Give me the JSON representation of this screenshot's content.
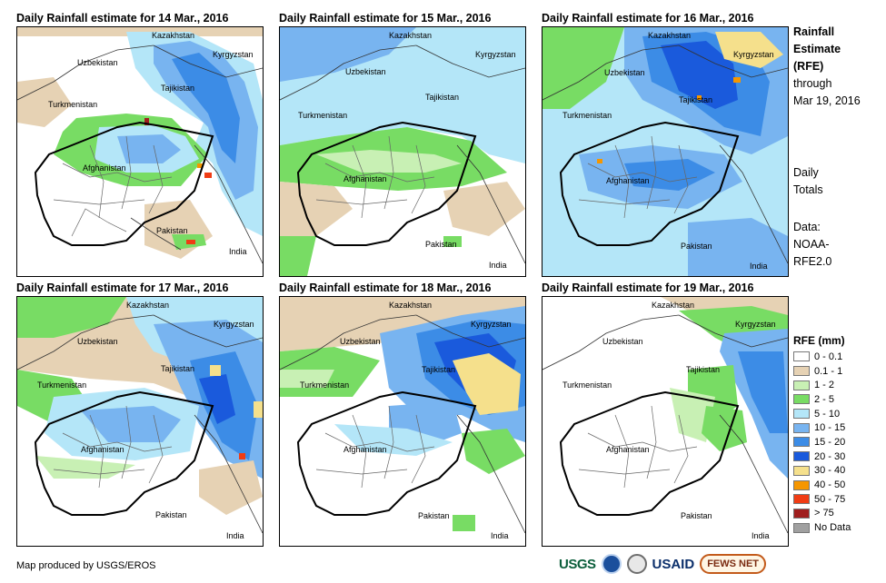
{
  "panels": [
    {
      "title": "Daily Rainfall estimate for 14 Mar., 2016"
    },
    {
      "title": "Daily Rainfall estimate for 15 Mar., 2016"
    },
    {
      "title": "Daily Rainfall estimate for 16 Mar., 2016"
    },
    {
      "title": "Daily Rainfall estimate for 17 Mar., 2016"
    },
    {
      "title": "Daily Rainfall estimate for 18 Mar., 2016"
    },
    {
      "title": "Daily Rainfall estimate for 19 Mar., 2016"
    }
  ],
  "map_labels": {
    "kazakhstan": "Kazakhstan",
    "kyrgyzstan": "Kyrgyzstan",
    "uzbekistan": "Uzbekistan",
    "tajikistan": "Tajikistan",
    "turkmenistan": "Turkmenistan",
    "afghanistan": "Afghanistan",
    "pakistan": "Pakistan",
    "india": "India"
  },
  "sidebar": {
    "title_line1": "Rainfall",
    "title_line2": "Estimate",
    "title_line3": "(RFE)",
    "through_label": "through",
    "through_date": "Mar 19, 2016",
    "totals_line1": "Daily",
    "totals_line2": "Totals",
    "data_label": "Data:",
    "data_source_line1": "NOAA-",
    "data_source_line2": "RFE2.0"
  },
  "legend": {
    "title": "RFE (mm)",
    "items": [
      {
        "label": "0 - 0.1",
        "color": "#ffffff"
      },
      {
        "label": "0.1 - 1",
        "color": "#e6d2b4"
      },
      {
        "label": "1 - 2",
        "color": "#c8f0b4"
      },
      {
        "label": "2 - 5",
        "color": "#78dc64"
      },
      {
        "label": "5 - 10",
        "color": "#b4e6f8"
      },
      {
        "label": "10 - 15",
        "color": "#78b4f0"
      },
      {
        "label": "15 - 20",
        "color": "#3c8ce6"
      },
      {
        "label": "20 - 30",
        "color": "#1a5adc"
      },
      {
        "label": "30 - 40",
        "color": "#f5e08c"
      },
      {
        "label": "40 - 50",
        "color": "#f59600"
      },
      {
        "label": "50 - 75",
        "color": "#f03c14"
      },
      {
        "label": "> 75",
        "color": "#a01e1e"
      },
      {
        "label": "No Data",
        "color": "#a0a0a0"
      }
    ]
  },
  "credit": "Map produced by USGS/EROS",
  "logos": {
    "usgs": "USGS",
    "usaid": "USAID",
    "fewsnet": "FEWS NET"
  }
}
